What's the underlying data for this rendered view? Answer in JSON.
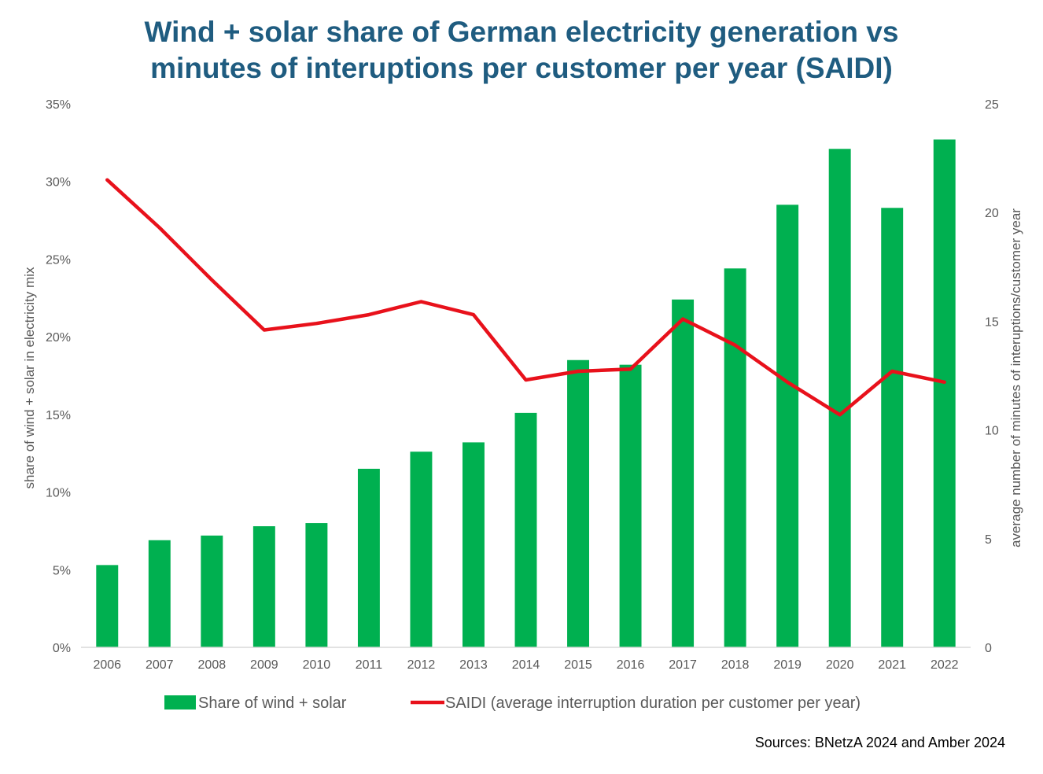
{
  "chart_data": {
    "type": "bar",
    "title_lines": [
      "Wind + solar share of German electricity generation vs",
      "minutes of interuptions per customer per year (SAIDI)"
    ],
    "categories": [
      "2006",
      "2007",
      "2008",
      "2009",
      "2010",
      "2011",
      "2012",
      "2013",
      "2014",
      "2015",
      "2016",
      "2017",
      "2018",
      "2019",
      "2020",
      "2021",
      "2022"
    ],
    "series": [
      {
        "name": "Share of wind + solar",
        "type": "bar",
        "axis": "left",
        "color": "#00b050",
        "values": [
          5.3,
          6.9,
          7.2,
          7.8,
          8.0,
          11.5,
          12.6,
          13.2,
          15.1,
          18.5,
          18.2,
          22.4,
          24.4,
          28.5,
          32.1,
          28.3,
          32.7
        ]
      },
      {
        "name": "SAIDI (average interruption duration per customer per year)",
        "type": "line",
        "axis": "right",
        "color": "#e8111b",
        "values": [
          21.5,
          19.3,
          16.9,
          14.6,
          14.9,
          15.3,
          15.9,
          15.3,
          12.3,
          12.7,
          12.8,
          15.1,
          13.9,
          12.2,
          10.7,
          12.7,
          12.2
        ]
      }
    ],
    "ylabel_left": "share of wind + solar in electricity mix",
    "ylabel_right": "average number of minutes of interuptions/customer year",
    "ylim_left": [
      0,
      35
    ],
    "ylim_right": [
      0,
      25
    ],
    "yticks_left": [
      "0%",
      "5%",
      "10%",
      "15%",
      "20%",
      "25%",
      "30%",
      "35%"
    ],
    "yticks_right": [
      "0",
      "5",
      "10",
      "15",
      "20",
      "25"
    ],
    "grid": false,
    "legend_position": "bottom",
    "source_note": "Sources: BNetzA 2024 and Amber 2024"
  }
}
